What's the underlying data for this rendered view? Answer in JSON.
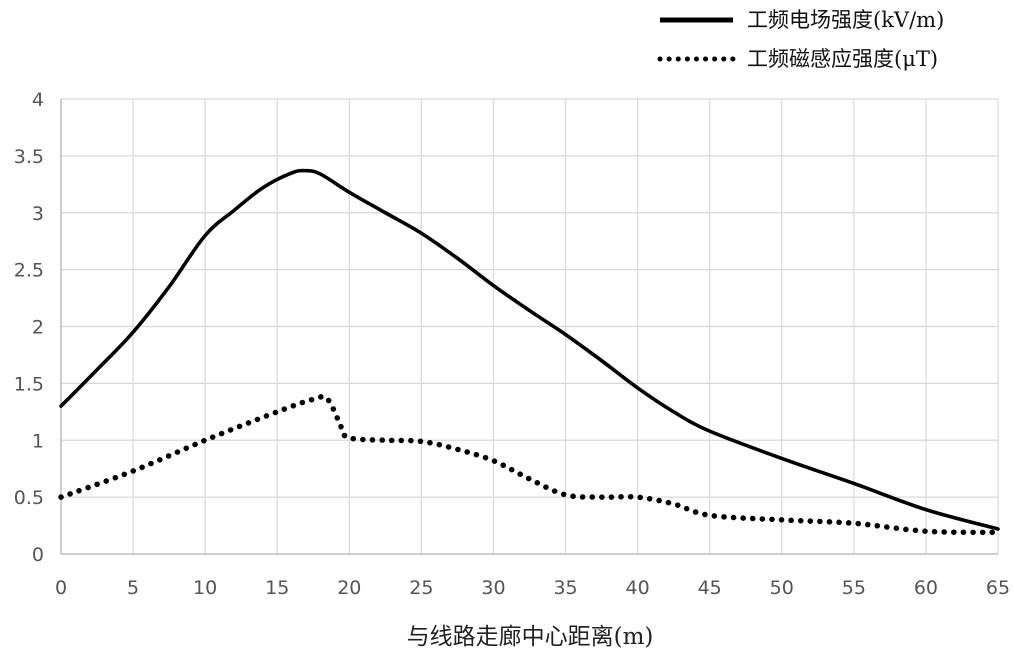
{
  "chart_data": {
    "type": "line",
    "title": "",
    "xlabel": "与线路走廊中心距离(m)",
    "ylabel": "",
    "xlim": [
      0,
      65
    ],
    "ylim": [
      0,
      4
    ],
    "x_ticks": [
      0,
      5,
      10,
      15,
      20,
      25,
      30,
      35,
      40,
      45,
      50,
      55,
      60,
      65
    ],
    "y_ticks": [
      0,
      0.5,
      1,
      1.5,
      2,
      2.5,
      3,
      3.5,
      4
    ],
    "y_tick_labels": [
      "0",
      "0.5",
      "1",
      "1.5",
      "2",
      "2.5",
      "3",
      "3.5",
      "4"
    ],
    "grid": true,
    "legend_position": "top-right",
    "series": [
      {
        "name": "工频电场强度(kV/m)",
        "style": "solid",
        "color": "#000000",
        "x": [
          0,
          2.5,
          5,
          7.5,
          10,
          12,
          14,
          16,
          17,
          18,
          20,
          22.5,
          25,
          27.5,
          30,
          32.5,
          35,
          37.5,
          40,
          42.5,
          45,
          50,
          55,
          60,
          65
        ],
        "y": [
          1.3,
          1.62,
          1.95,
          2.35,
          2.8,
          3.02,
          3.22,
          3.35,
          3.37,
          3.34,
          3.18,
          3.0,
          2.82,
          2.6,
          2.36,
          2.14,
          1.93,
          1.7,
          1.46,
          1.25,
          1.08,
          0.84,
          0.62,
          0.39,
          0.22
        ]
      },
      {
        "name": "工频磁感应强度(μT)",
        "style": "dotted",
        "color": "#000000",
        "x": [
          0,
          5,
          10,
          15,
          17.5,
          18.5,
          19.5,
          20,
          22.5,
          25,
          27.5,
          30,
          32.5,
          35,
          37.5,
          40,
          42.5,
          45,
          50,
          55,
          60,
          65
        ],
        "y": [
          0.5,
          0.73,
          1.0,
          1.25,
          1.36,
          1.36,
          1.1,
          1.02,
          1.0,
          0.99,
          0.92,
          0.82,
          0.66,
          0.52,
          0.5,
          0.5,
          0.44,
          0.34,
          0.3,
          0.27,
          0.2,
          0.19
        ]
      }
    ]
  }
}
